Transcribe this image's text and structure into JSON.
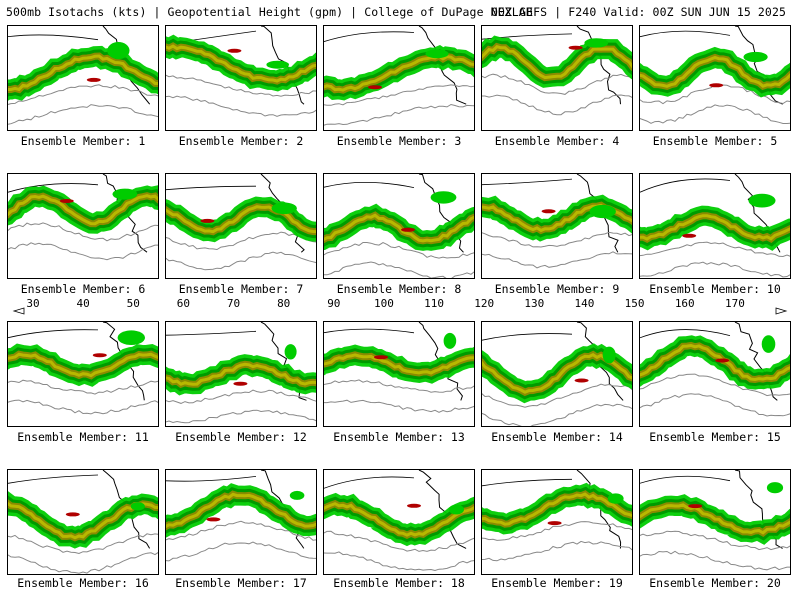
{
  "header": {
    "left": "500mb Isotachs (kts) | Geopotential Height (gpm) | College of DuPage NEXLAB",
    "right": "00Z GEFS | F240 Valid: 00Z SUN JUN 15 2025"
  },
  "members": [
    "Ensemble Member: 1",
    "Ensemble Member: 2",
    "Ensemble Member: 3",
    "Ensemble Member: 4",
    "Ensemble Member: 5",
    "Ensemble Member: 6",
    "Ensemble Member: 7",
    "Ensemble Member: 8",
    "Ensemble Member: 9",
    "Ensemble Member: 10",
    "Ensemble Member: 11",
    "Ensemble Member: 12",
    "Ensemble Member: 13",
    "Ensemble Member: 14",
    "Ensemble Member: 15",
    "Ensemble Member: 16",
    "Ensemble Member: 17",
    "Ensemble Member: 18",
    "Ensemble Member: 19",
    "Ensemble Member: 20"
  ],
  "colorbar": {
    "labels": [
      "30",
      "40",
      "50",
      "60",
      "70",
      "80",
      "90",
      "100",
      "110",
      "120",
      "130",
      "140",
      "150",
      "160",
      "170"
    ],
    "colors": [
      "#006400",
      "#009a00",
      "#00cc00",
      "#00ff00",
      "#8b8b00",
      "#b8b800",
      "#e0e000",
      "#ffff00",
      "#8b0000",
      "#b00000",
      "#d80000",
      "#ff0000",
      "#8b008b",
      "#b000b0",
      "#d800d8",
      "#ff00ff",
      "#00008b",
      "#0000cd",
      "#1e6fff",
      "#00a0ff",
      "#00cccc",
      "#00ffff",
      "#808080",
      "#a9a9a9",
      "#d3d3d3"
    ]
  }
}
